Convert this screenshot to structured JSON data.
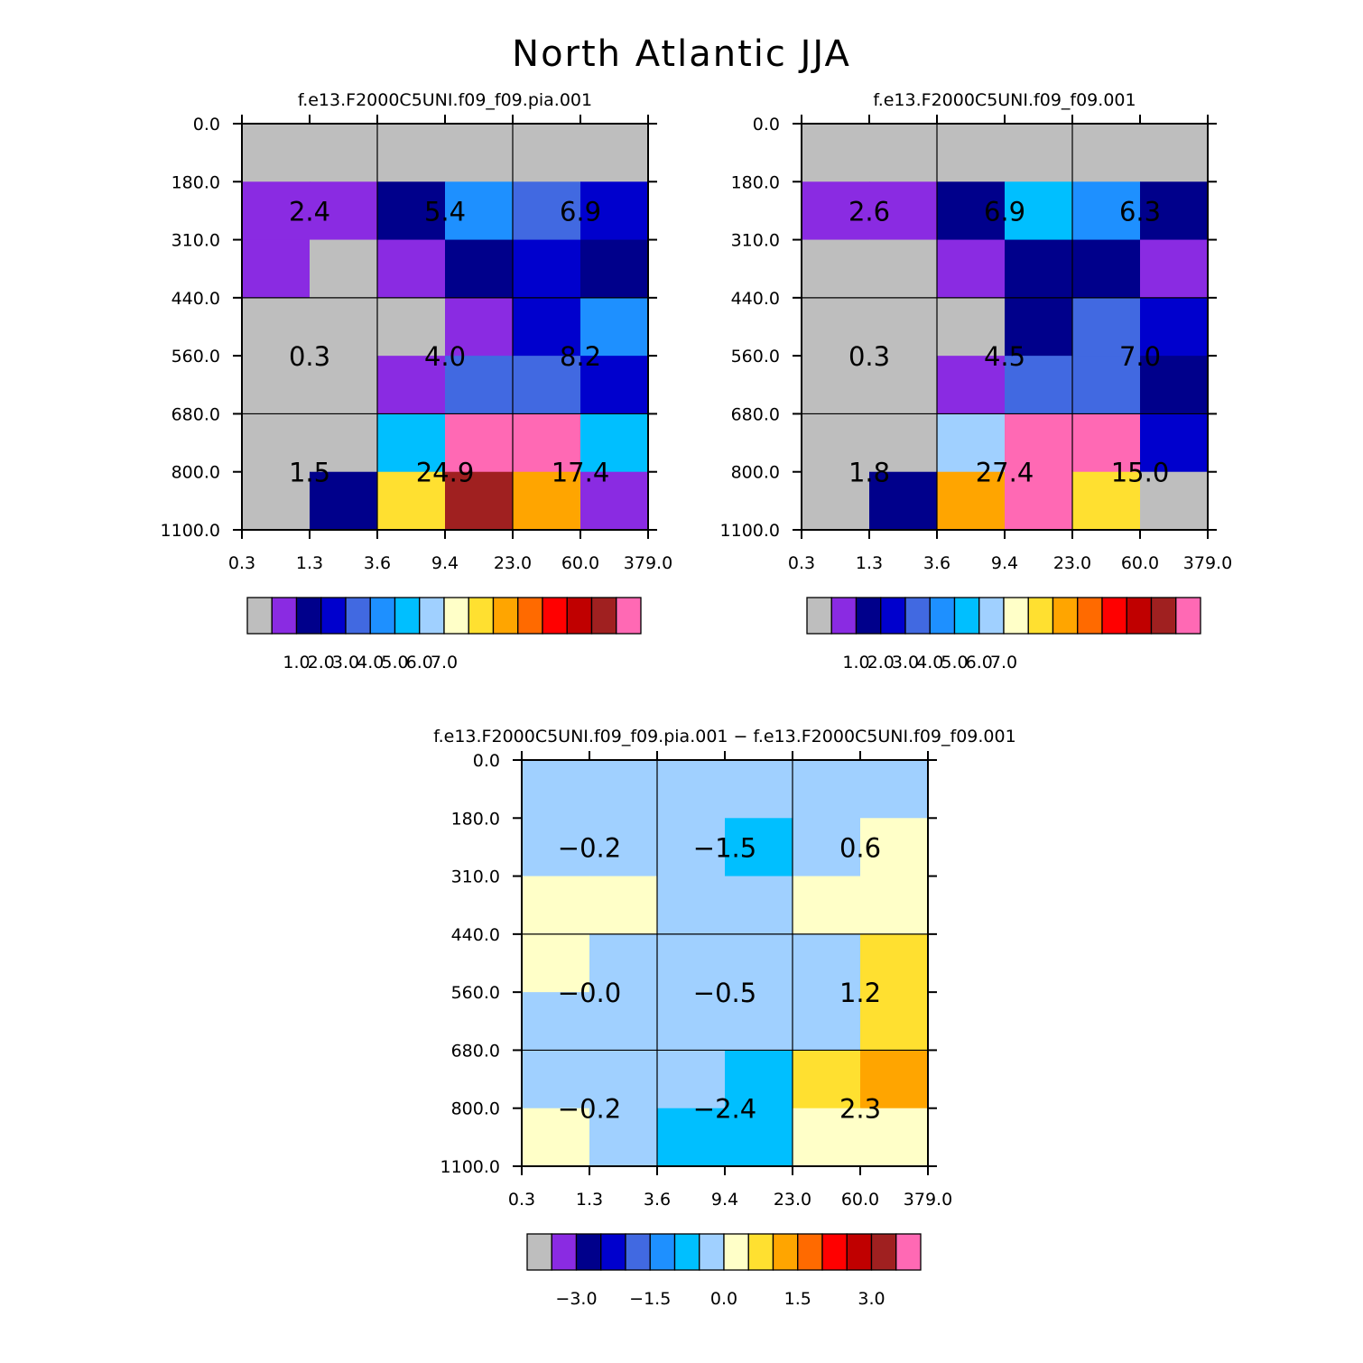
{
  "main_title": "North Atlantic JJA",
  "palette": {
    "levels": [
      "#BEBEBE",
      "#8A2BE2",
      "#00008B",
      "#0000CD",
      "#4169E1",
      "#1E90FF",
      "#00BFFF",
      "#A0D0FF",
      "#FFFFC8",
      "#FFE030",
      "#FFA500",
      "#FF6A00",
      "#FF0000",
      "#C00000",
      "#A02020",
      "#FF69B4"
    ]
  },
  "chart_data": [
    {
      "type": "heatmap",
      "title": "f.e13.F2000C5UNI.f09_f09.pia.001",
      "x_ticks": [
        "0.3",
        "1.3",
        "3.6",
        "9.4",
        "23.0",
        "60.0",
        "379.0"
      ],
      "y_ticks": [
        "0.0",
        "180.0",
        "310.0",
        "440.0",
        "560.0",
        "680.0",
        "800.0",
        "1100.0"
      ],
      "grid_color_index": [
        [
          0,
          0,
          0,
          0,
          0,
          0
        ],
        [
          1,
          1,
          2,
          5,
          4,
          3
        ],
        [
          1,
          0,
          1,
          2,
          3,
          2
        ],
        [
          0,
          0,
          0,
          1,
          3,
          5
        ],
        [
          0,
          0,
          1,
          4,
          4,
          3
        ],
        [
          0,
          0,
          6,
          15,
          15,
          6
        ],
        [
          0,
          2,
          9,
          14,
          10,
          1
        ]
      ],
      "cell_values": [
        [
          "2.4",
          "5.4",
          "6.9"
        ],
        [
          "0.3",
          "4.0",
          "8.2"
        ],
        [
          "1.5",
          "24.9",
          "17.4"
        ]
      ],
      "colorbar_labels": [
        "1.0",
        "2.0",
        "3.0",
        "4.0",
        "5.0",
        "6.0",
        "7.0"
      ]
    },
    {
      "type": "heatmap",
      "title": "f.e13.F2000C5UNI.f09_f09.001",
      "x_ticks": [
        "0.3",
        "1.3",
        "3.6",
        "9.4",
        "23.0",
        "60.0",
        "379.0"
      ],
      "y_ticks": [
        "0.0",
        "180.0",
        "310.0",
        "440.0",
        "560.0",
        "680.0",
        "800.0",
        "1100.0"
      ],
      "grid_color_index": [
        [
          0,
          0,
          0,
          0,
          0,
          0
        ],
        [
          1,
          1,
          2,
          6,
          5,
          2
        ],
        [
          0,
          0,
          1,
          2,
          2,
          1
        ],
        [
          0,
          0,
          0,
          2,
          4,
          3
        ],
        [
          0,
          0,
          1,
          4,
          4,
          2
        ],
        [
          0,
          0,
          7,
          15,
          15,
          3
        ],
        [
          0,
          2,
          10,
          15,
          9,
          0
        ]
      ],
      "cell_values": [
        [
          "2.6",
          "6.9",
          "6.3"
        ],
        [
          "0.3",
          "4.5",
          "7.0"
        ],
        [
          "1.8",
          "27.4",
          "15.0"
        ]
      ],
      "colorbar_labels": [
        "1.0",
        "2.0",
        "3.0",
        "4.0",
        "5.0",
        "6.0",
        "7.0"
      ]
    },
    {
      "type": "heatmap",
      "title": "f.e13.F2000C5UNI.f09_f09.pia.001 − f.e13.F2000C5UNI.f09_f09.001",
      "x_ticks": [
        "0.3",
        "1.3",
        "3.6",
        "9.4",
        "23.0",
        "60.0",
        "379.0"
      ],
      "y_ticks": [
        "0.0",
        "180.0",
        "310.0",
        "440.0",
        "560.0",
        "680.0",
        "800.0",
        "1100.0"
      ],
      "grid_color_index": [
        [
          7,
          7,
          7,
          7,
          7,
          7
        ],
        [
          7,
          7,
          7,
          6,
          7,
          8
        ],
        [
          8,
          8,
          7,
          7,
          8,
          8
        ],
        [
          8,
          7,
          7,
          7,
          7,
          9
        ],
        [
          7,
          7,
          7,
          7,
          7,
          9
        ],
        [
          7,
          7,
          7,
          6,
          9,
          10
        ],
        [
          8,
          7,
          6,
          6,
          8,
          8
        ]
      ],
      "cell_values": [
        [
          "−0.2",
          "−1.5",
          "0.6"
        ],
        [
          "−0.0",
          "−0.5",
          "1.2"
        ],
        [
          "−0.2",
          "−2.4",
          "2.3"
        ]
      ],
      "colorbar_labels": [
        "−3.0",
        "−1.5",
        "0.0",
        "1.5",
        "3.0"
      ]
    }
  ]
}
